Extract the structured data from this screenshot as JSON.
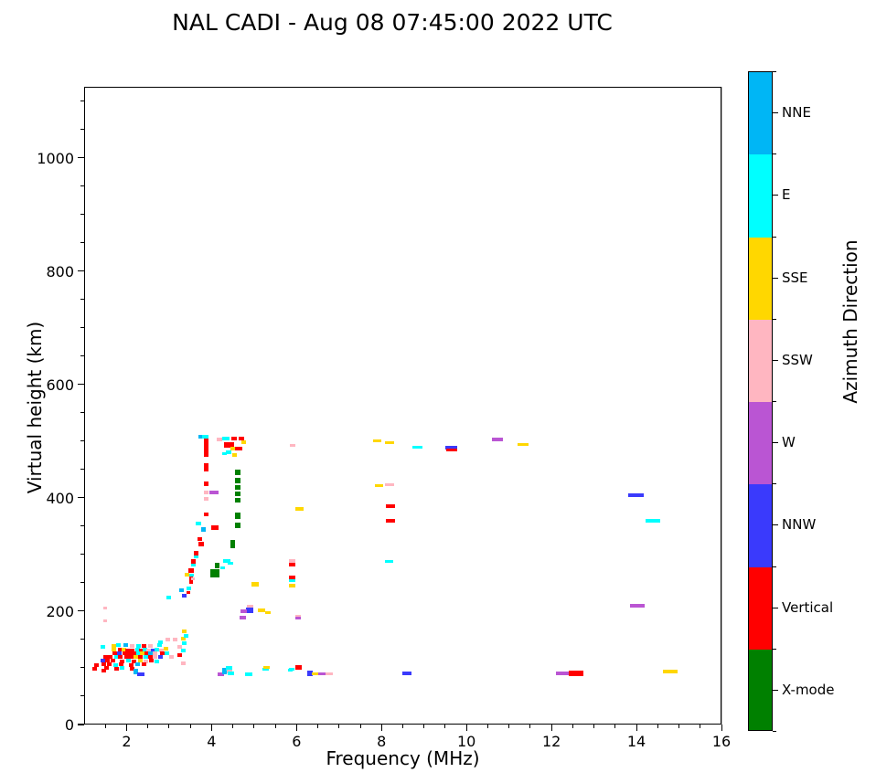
{
  "chart_data": {
    "type": "scatter",
    "title": "NAL CADI - Aug 08 07:45:00 2022 UTC",
    "xlabel": "Frequency (MHz)",
    "ylabel": "Virtual height (km)",
    "colorbar_label": "Azimuth Direction",
    "xlim": [
      1,
      16
    ],
    "ylim": [
      0,
      1125
    ],
    "xticks": [
      2,
      4,
      6,
      8,
      10,
      12,
      14,
      16
    ],
    "yticks": [
      0,
      200,
      400,
      600,
      800,
      1000
    ],
    "x_minor_step": 0.5,
    "y_minor_step": 50,
    "grid": true,
    "grid_color": "#b8b8b8",
    "colorbar": [
      {
        "label": "NNE",
        "key": "B",
        "color": "#00b6f5"
      },
      {
        "label": "E",
        "key": "C",
        "color": "#00ffff"
      },
      {
        "label": "SSE",
        "key": "G",
        "color": "#ffd700"
      },
      {
        "label": "SSW",
        "key": "P",
        "color": "#ffb6c1"
      },
      {
        "label": "W",
        "key": "W",
        "color": "#ba55d3"
      },
      {
        "label": "NNW",
        "key": "N",
        "color": "#3a3afc"
      },
      {
        "label": "Vertical",
        "key": "R",
        "color": "#ff0000"
      },
      {
        "label": "X-mode",
        "key": "X",
        "color": "#008000"
      }
    ],
    "palette": {
      "B": "#00b6f5",
      "C": "#00ffff",
      "G": "#ffd700",
      "P": "#ffb6c1",
      "W": "#ba55d3",
      "N": "#3a3afc",
      "R": "#ff0000",
      "X": "#008000"
    },
    "points_format": "[frequency_MHz, virtual_height_km, color_key, marker_w_px, marker_h_px]",
    "points": [
      [
        2.8,
        145,
        "C"
      ],
      [
        1.45,
        137,
        "C"
      ],
      [
        1.71,
        139,
        "G"
      ],
      [
        1.8,
        140,
        "C"
      ],
      [
        1.97,
        141,
        "B"
      ],
      [
        2.12,
        139,
        "P"
      ],
      [
        2.28,
        139,
        "C"
      ],
      [
        2.42,
        139,
        "R"
      ],
      [
        2.55,
        139,
        "P"
      ],
      [
        2.77,
        141,
        "C"
      ],
      [
        1.71,
        132,
        "G"
      ],
      [
        1.84,
        132,
        "R"
      ],
      [
        1.93,
        132,
        "G"
      ],
      [
        2.03,
        131,
        "R"
      ],
      [
        2.12,
        131,
        "R"
      ],
      [
        2.25,
        132,
        "C"
      ],
      [
        2.35,
        131,
        "R"
      ],
      [
        2.44,
        132,
        "C"
      ],
      [
        2.52,
        131,
        "P"
      ],
      [
        2.62,
        131,
        "N"
      ],
      [
        2.72,
        132,
        "C"
      ],
      [
        2.82,
        131,
        "P"
      ],
      [
        2.92,
        133,
        "G"
      ],
      [
        1.73,
        126,
        "R"
      ],
      [
        1.83,
        125,
        "N"
      ],
      [
        1.95,
        126,
        "R"
      ],
      [
        2.07,
        126,
        "R"
      ],
      [
        2.18,
        126,
        "R"
      ],
      [
        2.28,
        126,
        "C"
      ],
      [
        2.37,
        125,
        "G"
      ],
      [
        2.47,
        126,
        "R"
      ],
      [
        2.57,
        125,
        "B"
      ],
      [
        2.67,
        126,
        "P"
      ],
      [
        2.83,
        126,
        "R"
      ],
      [
        2.95,
        125,
        "C"
      ],
      [
        1.5,
        119,
        "R"
      ],
      [
        1.62,
        120,
        "R"
      ],
      [
        1.76,
        119,
        "C"
      ],
      [
        1.86,
        119,
        "R"
      ],
      [
        1.99,
        120,
        "R"
      ],
      [
        2.1,
        119,
        "R"
      ],
      [
        2.22,
        119,
        "G"
      ],
      [
        2.33,
        119,
        "R"
      ],
      [
        2.45,
        119,
        "C"
      ],
      [
        2.55,
        120,
        "R"
      ],
      [
        2.67,
        119,
        "P"
      ],
      [
        2.8,
        119,
        "N"
      ],
      [
        3.05,
        120,
        "P"
      ],
      [
        1.45,
        113,
        "N"
      ],
      [
        1.55,
        113,
        "R"
      ],
      [
        1.68,
        113,
        "R"
      ],
      [
        1.9,
        112,
        "R"
      ],
      [
        2.05,
        113,
        "C"
      ],
      [
        2.18,
        112,
        "R"
      ],
      [
        2.32,
        113,
        "G"
      ],
      [
        2.45,
        112,
        "P"
      ],
      [
        2.58,
        113,
        "R"
      ],
      [
        2.72,
        112,
        "C"
      ],
      [
        1.28,
        104,
        "R"
      ],
      [
        1.47,
        106,
        "R"
      ],
      [
        1.6,
        106,
        "R"
      ],
      [
        1.74,
        105,
        "C"
      ],
      [
        1.88,
        106,
        "R"
      ],
      [
        2.1,
        105,
        "R"
      ],
      [
        2.25,
        106,
        "B"
      ],
      [
        2.42,
        106,
        "R"
      ],
      [
        1.25,
        98,
        "R"
      ],
      [
        1.52,
        100,
        "R"
      ],
      [
        1.77,
        99,
        "R"
      ],
      [
        1.9,
        100,
        "C"
      ],
      [
        2.13,
        99,
        "R"
      ],
      [
        1.47,
        95,
        "R"
      ],
      [
        2.22,
        94,
        "B",
        5,
        6
      ],
      [
        2.33,
        89,
        "N",
        8,
        4
      ],
      [
        2.97,
        150,
        "P"
      ],
      [
        3.15,
        150,
        "P"
      ],
      [
        3.35,
        165,
        "G"
      ],
      [
        3.33,
        152,
        "G"
      ],
      [
        3.35,
        143,
        "C"
      ],
      [
        3.25,
        137,
        "P"
      ],
      [
        3.33,
        130,
        "C"
      ],
      [
        3.25,
        123,
        "R"
      ],
      [
        3.4,
        157,
        "C"
      ],
      [
        3.33,
        108,
        "P"
      ],
      [
        2.98,
        224,
        "C"
      ],
      [
        3.3,
        237,
        "B"
      ],
      [
        3.35,
        228,
        "N"
      ],
      [
        3.45,
        233,
        "R",
        4,
        3
      ],
      [
        3.47,
        240,
        "C"
      ],
      [
        3.52,
        255,
        "R",
        4,
        8
      ],
      [
        1.5,
        205,
        "P",
        4,
        3
      ],
      [
        1.5,
        183,
        "P",
        4,
        3
      ],
      [
        3.75,
        507,
        "B",
        6,
        4
      ],
      [
        3.85,
        507,
        "C",
        7,
        4
      ],
      [
        3.87,
        501,
        "R",
        5,
        5
      ],
      [
        3.87,
        495,
        "R",
        5,
        5
      ],
      [
        3.87,
        489,
        "R",
        5,
        5
      ],
      [
        3.87,
        483,
        "R",
        5,
        5
      ],
      [
        3.87,
        477,
        "R",
        5,
        5
      ],
      [
        3.87,
        457,
        "R",
        5,
        5
      ],
      [
        3.87,
        450,
        "R",
        5,
        4
      ],
      [
        3.87,
        425,
        "R",
        5,
        5
      ],
      [
        3.87,
        410,
        "P",
        5,
        4
      ],
      [
        4.05,
        410,
        "W",
        10,
        4
      ],
      [
        3.87,
        398,
        "P",
        5,
        4
      ],
      [
        3.87,
        370,
        "R",
        5,
        4
      ],
      [
        3.7,
        355,
        "C",
        6,
        4
      ],
      [
        3.8,
        344,
        "B",
        5,
        5
      ],
      [
        4.07,
        348,
        "R",
        8,
        5
      ],
      [
        3.73,
        327,
        "R",
        5,
        4
      ],
      [
        3.75,
        318,
        "R",
        6,
        5
      ],
      [
        3.63,
        303,
        "R",
        5,
        5
      ],
      [
        3.63,
        296,
        "C",
        5,
        3
      ],
      [
        3.58,
        288,
        "R",
        5,
        5
      ],
      [
        3.57,
        281,
        "C",
        5,
        3
      ],
      [
        3.52,
        271,
        "R",
        6,
        5
      ],
      [
        3.53,
        264,
        "C",
        5,
        3
      ],
      [
        3.42,
        264,
        "G",
        5,
        4
      ],
      [
        3.57,
        257,
        "P",
        4,
        3
      ],
      [
        4.18,
        503,
        "P",
        6,
        4
      ],
      [
        4.33,
        505,
        "C",
        8,
        4
      ],
      [
        4.52,
        505,
        "R",
        6,
        4
      ],
      [
        4.7,
        505,
        "R",
        6,
        4
      ],
      [
        4.76,
        498,
        "G",
        5,
        4
      ],
      [
        4.42,
        493,
        "R",
        11,
        6
      ],
      [
        4.5,
        487,
        "G",
        6,
        4
      ],
      [
        4.63,
        486,
        "R",
        8,
        4
      ],
      [
        4.4,
        480,
        "C",
        6,
        4
      ],
      [
        4.55,
        475,
        "G",
        5,
        4
      ],
      [
        4.3,
        478,
        "C",
        5,
        3
      ],
      [
        4.62,
        445,
        "X",
        6,
        6
      ],
      [
        4.62,
        430,
        "X",
        6,
        6
      ],
      [
        4.62,
        419,
        "X",
        6,
        5
      ],
      [
        4.62,
        407,
        "X",
        6,
        5
      ],
      [
        4.62,
        396,
        "X",
        6,
        5
      ],
      [
        4.62,
        368,
        "X",
        6,
        7
      ],
      [
        4.62,
        352,
        "X",
        6,
        6
      ],
      [
        4.5,
        318,
        "X",
        5,
        9
      ],
      [
        4.13,
        280,
        "X",
        5,
        6
      ],
      [
        4.08,
        266,
        "X",
        10,
        9
      ],
      [
        4.35,
        288,
        "C",
        8,
        4
      ],
      [
        4.45,
        284,
        "C",
        6,
        3
      ],
      [
        4.25,
        277,
        "C",
        5,
        3
      ],
      [
        5.02,
        247,
        "G",
        8,
        5
      ],
      [
        4.9,
        208,
        "P",
        7,
        4
      ],
      [
        4.9,
        201,
        "N",
        8,
        6
      ],
      [
        4.76,
        200,
        "W",
        7,
        4
      ],
      [
        4.73,
        189,
        "W",
        7,
        4
      ],
      [
        5.17,
        202,
        "G",
        8,
        4
      ],
      [
        5.32,
        198,
        "G",
        6,
        3
      ],
      [
        5.9,
        493,
        "P",
        6,
        3
      ],
      [
        6.06,
        380,
        "G",
        9,
        4
      ],
      [
        5.9,
        288,
        "P",
        7,
        4
      ],
      [
        5.9,
        282,
        "R",
        7,
        4
      ],
      [
        5.9,
        260,
        "R",
        7,
        4
      ],
      [
        5.9,
        254,
        "C",
        7,
        3
      ],
      [
        5.9,
        245,
        "G",
        7,
        4
      ],
      [
        6.03,
        191,
        "P",
        6,
        3
      ],
      [
        6.03,
        187,
        "W",
        6,
        3
      ],
      [
        5.88,
        97,
        "C",
        6,
        3
      ],
      [
        6.05,
        100,
        "R",
        7,
        5
      ],
      [
        6.32,
        90,
        "N",
        6,
        6
      ],
      [
        6.45,
        89,
        "G",
        8,
        3
      ],
      [
        6.6,
        89,
        "W",
        8,
        3
      ],
      [
        6.77,
        89,
        "P",
        8,
        3
      ],
      [
        4.22,
        89,
        "W",
        7,
        4
      ],
      [
        4.3,
        94,
        "B",
        5,
        7
      ],
      [
        4.42,
        99,
        "C",
        7,
        5
      ],
      [
        4.42,
        94,
        "P",
        6,
        4
      ],
      [
        4.45,
        90,
        "C",
        7,
        4
      ],
      [
        4.88,
        88,
        "C",
        8,
        4
      ],
      [
        5.28,
        97,
        "C",
        7,
        3
      ],
      [
        5.3,
        100,
        "G",
        7,
        3
      ],
      [
        5.86,
        96,
        "C",
        5,
        3
      ],
      [
        7.9,
        501,
        "G",
        9,
        3
      ],
      [
        8.18,
        497,
        "G",
        10,
        3
      ],
      [
        8.85,
        489,
        "C",
        11,
        3
      ],
      [
        9.65,
        488,
        "N",
        13,
        4
      ],
      [
        9.65,
        485,
        "R",
        12,
        3
      ],
      [
        7.95,
        421,
        "G",
        9,
        3
      ],
      [
        8.18,
        423,
        "P",
        10,
        3
      ],
      [
        8.2,
        385,
        "R",
        10,
        4
      ],
      [
        8.2,
        360,
        "R",
        10,
        4
      ],
      [
        8.18,
        288,
        "C",
        9,
        3
      ],
      [
        8.6,
        90,
        "N",
        10,
        4
      ],
      [
        10.72,
        503,
        "W",
        12,
        4
      ],
      [
        11.32,
        494,
        "G",
        12,
        3
      ],
      [
        13.98,
        405,
        "N",
        17,
        4
      ],
      [
        14.38,
        360,
        "C",
        16,
        4
      ],
      [
        14.02,
        209,
        "W",
        16,
        4
      ],
      [
        12.25,
        90,
        "W",
        14,
        4
      ],
      [
        12.58,
        90,
        "R",
        16,
        6
      ],
      [
        14.8,
        94,
        "G",
        16,
        4
      ]
    ]
  }
}
